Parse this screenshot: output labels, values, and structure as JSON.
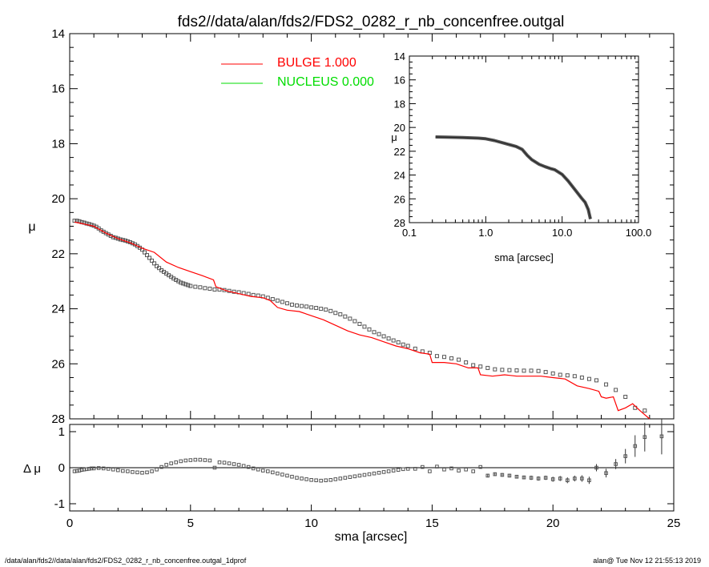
{
  "title": "fds2//data/alan/fds2/FDS2_0282_r_nb_concenfree.outgal",
  "footer_left": "/data/alan/fds2//data/alan/fds2/FDS2_0282_r_nb_concenfree.outgal_1dprof",
  "footer_right": "alan@  Tue Nov 12 21:55:13 2019",
  "colors": {
    "bulge": "#ff0000",
    "nucleus": "#00dd00",
    "data": "#555555",
    "axis": "#000000"
  },
  "chart_data": [
    {
      "type": "scatter",
      "panel": "main",
      "xlabel": "sma [arcsec]",
      "ylabel": "μ",
      "xlim": [
        0,
        25
      ],
      "ylim": [
        28,
        14
      ],
      "x_ticks": [
        0,
        5,
        10,
        15,
        20,
        25
      ],
      "y_ticks": [
        14,
        16,
        18,
        20,
        22,
        24,
        26,
        28
      ],
      "legend": [
        {
          "label": "BULGE  1.000",
          "color": "#ff0000"
        },
        {
          "label": "NUCLEUS  0.000",
          "color": "#00dd00"
        }
      ],
      "legend_position": "top-center",
      "series": [
        {
          "name": "BULGE  1.000",
          "kind": "line",
          "color": "#ff0000",
          "x": [
            0.2,
            0.5,
            1.0,
            1.5,
            2.0,
            2.5,
            3.0,
            3.5,
            4.0,
            4.5,
            5.0,
            5.5,
            5.95,
            6.05,
            6.5,
            7.0,
            7.5,
            8.0,
            8.3,
            8.6,
            9.0,
            9.5,
            10.0,
            10.5,
            11.0,
            11.5,
            12.0,
            12.5,
            13.0,
            13.5,
            14.0,
            14.5,
            14.9,
            15.0,
            15.5,
            16.0,
            16.5,
            16.9,
            17.0,
            17.5,
            18.0,
            18.5,
            19.0,
            19.5,
            20.0,
            20.5,
            21.0,
            21.5,
            21.9,
            22.0,
            22.2,
            22.5,
            22.7,
            23.0,
            23.3,
            23.6,
            24.0
          ],
          "y": [
            20.85,
            20.9,
            21.0,
            21.25,
            21.45,
            21.6,
            21.8,
            21.95,
            22.3,
            22.5,
            22.65,
            22.8,
            22.95,
            23.2,
            23.35,
            23.45,
            23.55,
            23.6,
            23.7,
            23.95,
            24.05,
            24.1,
            24.25,
            24.4,
            24.6,
            24.8,
            24.95,
            25.05,
            25.2,
            25.35,
            25.45,
            25.6,
            25.65,
            25.95,
            25.95,
            26.0,
            26.15,
            26.15,
            26.4,
            26.45,
            26.4,
            26.45,
            26.45,
            26.45,
            26.5,
            26.55,
            26.8,
            26.9,
            27.0,
            27.2,
            27.25,
            27.2,
            27.7,
            27.6,
            27.45,
            27.7,
            28.0
          ]
        },
        {
          "name": "",
          "kind": "points",
          "color": "#555555",
          "x": [
            0.2,
            0.3,
            0.4,
            0.5,
            0.6,
            0.7,
            0.8,
            0.9,
            1.0,
            1.1,
            1.2,
            1.3,
            1.4,
            1.5,
            1.6,
            1.7,
            1.8,
            1.9,
            2.0,
            2.1,
            2.2,
            2.3,
            2.4,
            2.5,
            2.6,
            2.7,
            2.8,
            2.9,
            3.0,
            3.1,
            3.2,
            3.3,
            3.4,
            3.5,
            3.6,
            3.7,
            3.8,
            3.9,
            4.0,
            4.1,
            4.2,
            4.3,
            4.4,
            4.5,
            4.6,
            4.7,
            4.8,
            4.9,
            5.0,
            5.2,
            5.4,
            5.6,
            5.8,
            6.0,
            6.2,
            6.4,
            6.6,
            6.8,
            7.0,
            7.2,
            7.4,
            7.6,
            7.8,
            8.0,
            8.2,
            8.4,
            8.6,
            8.8,
            9.0,
            9.2,
            9.4,
            9.6,
            9.8,
            10.0,
            10.2,
            10.4,
            10.6,
            10.8,
            11.0,
            11.2,
            11.4,
            11.6,
            11.8,
            12.0,
            12.2,
            12.4,
            12.6,
            12.8,
            13.0,
            13.2,
            13.4,
            13.6,
            13.8,
            14.0,
            14.3,
            14.6,
            14.9,
            15.2,
            15.5,
            15.8,
            16.1,
            16.4,
            16.7,
            17.0,
            17.3,
            17.6,
            17.9,
            18.2,
            18.5,
            18.8,
            19.1,
            19.4,
            19.7,
            20.0,
            20.3,
            20.6,
            20.9,
            21.2,
            21.5,
            21.8,
            22.2,
            22.6,
            23.0,
            23.4,
            23.8
          ],
          "y": [
            20.8,
            20.8,
            20.82,
            20.85,
            20.87,
            20.9,
            20.92,
            20.95,
            20.98,
            21.02,
            21.08,
            21.15,
            21.2,
            21.25,
            21.3,
            21.35,
            21.4,
            21.42,
            21.45,
            21.48,
            21.5,
            21.52,
            21.55,
            21.58,
            21.62,
            21.66,
            21.72,
            21.78,
            21.85,
            21.95,
            22.05,
            22.15,
            22.25,
            22.35,
            22.45,
            22.52,
            22.6,
            22.66,
            22.72,
            22.78,
            22.84,
            22.9,
            22.95,
            23.0,
            23.05,
            23.08,
            23.11,
            23.14,
            23.17,
            23.2,
            23.22,
            23.25,
            23.27,
            23.3,
            23.3,
            23.32,
            23.35,
            23.38,
            23.4,
            23.43,
            23.46,
            23.5,
            23.52,
            23.55,
            23.6,
            23.65,
            23.7,
            23.75,
            23.8,
            23.85,
            23.88,
            23.9,
            23.92,
            23.95,
            23.97,
            24.0,
            24.03,
            24.08,
            24.15,
            24.2,
            24.28,
            24.36,
            24.45,
            24.55,
            24.65,
            24.75,
            24.85,
            24.92,
            25.0,
            25.08,
            25.15,
            25.22,
            25.3,
            25.35,
            25.45,
            25.55,
            25.6,
            25.72,
            25.75,
            25.8,
            25.85,
            25.95,
            26.05,
            26.1,
            26.15,
            26.2,
            26.22,
            26.23,
            26.24,
            26.25,
            26.25,
            26.26,
            26.3,
            26.35,
            26.4,
            26.42,
            26.45,
            26.5,
            26.55,
            26.6,
            26.75,
            26.95,
            27.2,
            27.6,
            27.7
          ]
        }
      ]
    },
    {
      "type": "line",
      "panel": "inset",
      "xlabel": "sma [arcsec]",
      "ylabel": "μ",
      "x_scale": "log",
      "xlim": [
        0.1,
        100.0
      ],
      "ylim": [
        28,
        14
      ],
      "x_ticks": [
        "0.1",
        "1.0",
        "10.0",
        "100.0"
      ],
      "x_tick_values": [
        0.1,
        1.0,
        10.0,
        100.0
      ],
      "y_ticks": [
        14,
        16,
        18,
        20,
        22,
        24,
        26,
        28
      ],
      "series": [
        {
          "name": "",
          "color": "#555555",
          "x": [
            0.22,
            0.3,
            0.5,
            0.8,
            1.0,
            1.3,
            1.8,
            2.5,
            3.0,
            3.5,
            4.0,
            5.0,
            6.0,
            7.0,
            8.0,
            10.0,
            12.0,
            15.0,
            18.0,
            20.0,
            22.0,
            23.5
          ],
          "y": [
            20.8,
            20.82,
            20.85,
            20.9,
            20.95,
            21.1,
            21.35,
            21.6,
            21.85,
            22.35,
            22.7,
            23.1,
            23.3,
            23.45,
            23.55,
            23.95,
            24.5,
            25.3,
            25.95,
            26.3,
            26.9,
            27.7
          ]
        }
      ]
    },
    {
      "type": "scatter",
      "panel": "residual",
      "xlabel": "sma [arcsec]",
      "ylabel": "Δ μ",
      "xlim": [
        0,
        25
      ],
      "ylim": [
        -1.2,
        1.2
      ],
      "x_ticks": [
        0,
        5,
        10,
        15,
        20,
        25
      ],
      "y_ticks": [
        -1,
        0,
        1
      ],
      "series": [
        {
          "name": "",
          "color": "#555555",
          "x": [
            0.2,
            0.3,
            0.4,
            0.5,
            0.6,
            0.7,
            0.8,
            0.9,
            1.0,
            1.2,
            1.4,
            1.6,
            1.8,
            2.0,
            2.2,
            2.4,
            2.6,
            2.8,
            3.0,
            3.2,
            3.4,
            3.6,
            3.8,
            4.0,
            4.2,
            4.4,
            4.6,
            4.8,
            5.0,
            5.2,
            5.4,
            5.6,
            5.8,
            6.0,
            6.2,
            6.4,
            6.6,
            6.8,
            7.0,
            7.2,
            7.4,
            7.6,
            7.8,
            8.0,
            8.2,
            8.4,
            8.6,
            8.8,
            9.0,
            9.2,
            9.4,
            9.6,
            9.8,
            10.0,
            10.2,
            10.4,
            10.6,
            10.8,
            11.0,
            11.2,
            11.4,
            11.6,
            11.8,
            12.0,
            12.2,
            12.4,
            12.6,
            12.8,
            13.0,
            13.2,
            13.4,
            13.6,
            13.8,
            14.0,
            14.3,
            14.6,
            14.9,
            15.2,
            15.5,
            15.8,
            16.1,
            16.4,
            16.7,
            17.0,
            17.3,
            17.6,
            17.9,
            18.2,
            18.5,
            18.8,
            19.1,
            19.4,
            19.7,
            20.0,
            20.3,
            20.6,
            20.9,
            21.2,
            21.5,
            21.8,
            22.2,
            22.6,
            23.0,
            23.4,
            23.8,
            24.5
          ],
          "y": [
            -0.1,
            -0.09,
            -0.08,
            -0.06,
            -0.05,
            -0.04,
            -0.03,
            -0.02,
            -0.02,
            -0.01,
            -0.02,
            -0.03,
            -0.05,
            -0.07,
            -0.09,
            -0.1,
            -0.12,
            -0.13,
            -0.14,
            -0.13,
            -0.1,
            -0.05,
            0.02,
            0.08,
            0.12,
            0.15,
            0.18,
            0.2,
            0.21,
            0.22,
            0.22,
            0.21,
            0.2,
            0.0,
            0.15,
            0.14,
            0.12,
            0.1,
            0.08,
            0.05,
            0.02,
            -0.02,
            -0.05,
            -0.08,
            -0.1,
            -0.13,
            -0.16,
            -0.19,
            -0.22,
            -0.25,
            -0.28,
            -0.3,
            -0.32,
            -0.34,
            -0.35,
            -0.36,
            -0.35,
            -0.34,
            -0.32,
            -0.3,
            -0.28,
            -0.26,
            -0.24,
            -0.22,
            -0.2,
            -0.18,
            -0.16,
            -0.14,
            -0.12,
            -0.1,
            -0.08,
            -0.06,
            -0.04,
            -0.03,
            -0.03,
            0.02,
            -0.1,
            0.03,
            -0.05,
            -0.02,
            -0.08,
            -0.05,
            -0.1,
            0.02,
            -0.22,
            -0.18,
            -0.2,
            -0.22,
            -0.25,
            -0.27,
            -0.28,
            -0.3,
            -0.28,
            -0.32,
            -0.3,
            -0.35,
            -0.3,
            -0.3,
            -0.35,
            0.0,
            -0.15,
            0.1,
            0.32,
            0.6,
            0.85,
            0.87
          ],
          "err": [
            0,
            0,
            0,
            0,
            0,
            0,
            0,
            0,
            0,
            0,
            0,
            0,
            0,
            0,
            0,
            0,
            0,
            0,
            0,
            0,
            0,
            0,
            0,
            0,
            0,
            0,
            0,
            0,
            0,
            0,
            0,
            0,
            0,
            0,
            0,
            0,
            0,
            0,
            0,
            0,
            0,
            0,
            0,
            0,
            0,
            0,
            0,
            0,
            0,
            0,
            0,
            0,
            0,
            0,
            0,
            0,
            0,
            0,
            0,
            0,
            0,
            0,
            0,
            0,
            0,
            0,
            0,
            0,
            0,
            0,
            0,
            0,
            0,
            0,
            0,
            0,
            0,
            0,
            0,
            0,
            0,
            0,
            0,
            0,
            0.05,
            0.05,
            0.05,
            0.05,
            0.05,
            0.05,
            0.06,
            0.06,
            0.06,
            0.07,
            0.07,
            0.08,
            0.08,
            0.09,
            0.1,
            0.1,
            0.12,
            0.14,
            0.2,
            0.3,
            0.4,
            0.5
          ]
        }
      ]
    }
  ]
}
